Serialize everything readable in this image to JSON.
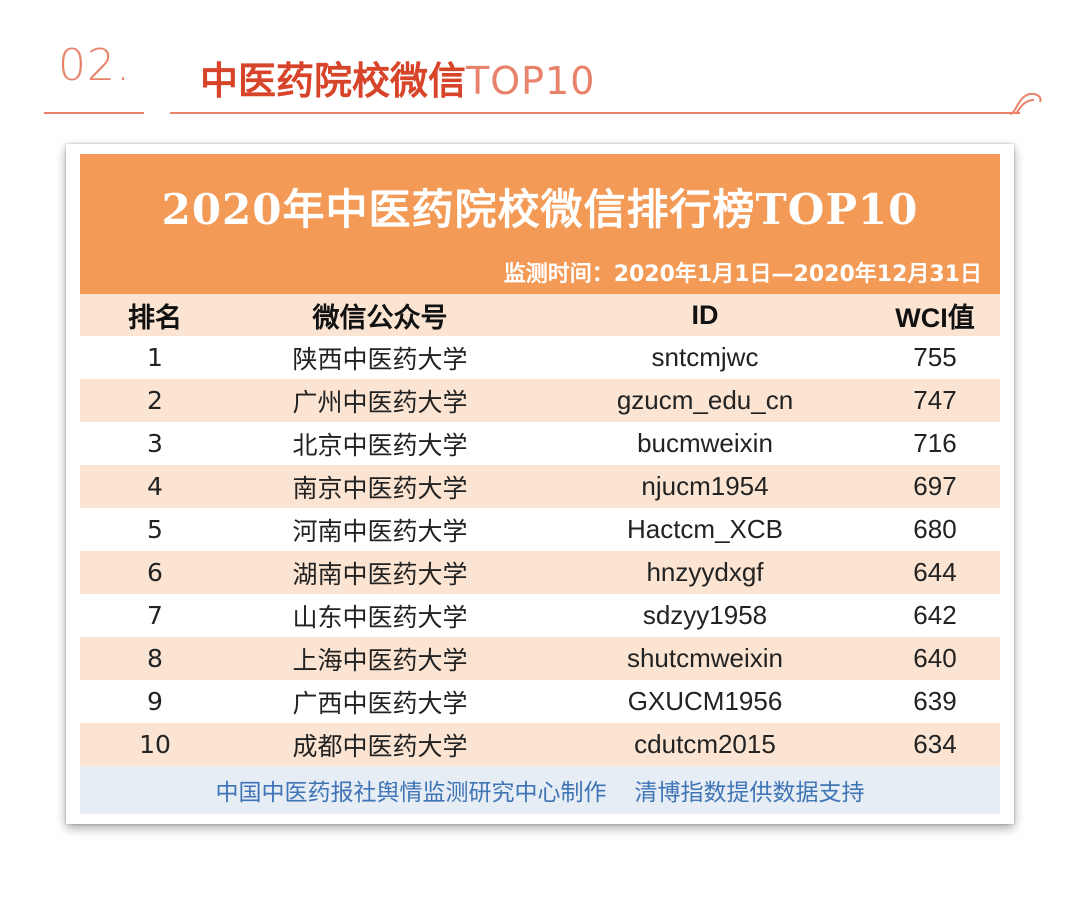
{
  "section": {
    "number": "02.",
    "title_cn": "中医药院校微信",
    "title_latin": "TOP10"
  },
  "card": {
    "banner_title": "2020年中医药院校微信排行榜TOP10",
    "banner_subtitle": "监测时间：2020年1月1日—2020年12月31日",
    "columns": [
      "排名",
      "微信公众号",
      "ID",
      "WCI值"
    ],
    "rows": [
      {
        "rank": "1",
        "name": "陕西中医药大学",
        "id": "sntcmjwc",
        "wci": "755"
      },
      {
        "rank": "2",
        "name": "广州中医药大学",
        "id": "gzucm_edu_cn",
        "wci": "747"
      },
      {
        "rank": "3",
        "name": "北京中医药大学",
        "id": "bucmweixin",
        "wci": "716"
      },
      {
        "rank": "4",
        "name": "南京中医药大学",
        "id": "njucm1954",
        "wci": "697"
      },
      {
        "rank": "5",
        "name": "河南中医药大学",
        "id": "Hactcm_XCB",
        "wci": "680"
      },
      {
        "rank": "6",
        "name": "湖南中医药大学",
        "id": "hnzyydxgf",
        "wci": "644"
      },
      {
        "rank": "7",
        "name": "山东中医药大学",
        "id": "sdzyy1958",
        "wci": "642"
      },
      {
        "rank": "8",
        "name": "上海中医药大学",
        "id": "shutcmweixin",
        "wci": "640"
      },
      {
        "rank": "9",
        "name": "广西中医药大学",
        "id": "GXUCM1956",
        "wci": "639"
      },
      {
        "rank": "10",
        "name": "成都中医药大学",
        "id": "cdutcm2015",
        "wci": "634"
      }
    ],
    "footer_left": "中国中医药报社舆情监测研究中心制作",
    "footer_right": "清博指数提供数据支持"
  },
  "colors": {
    "accent": "#e8826a",
    "title_red": "#d8442a",
    "banner_orange": "#f39a56",
    "stripe": "#fbe4d2",
    "footer_blue": "#3f74b6",
    "footer_bg": "#e6edf4"
  }
}
